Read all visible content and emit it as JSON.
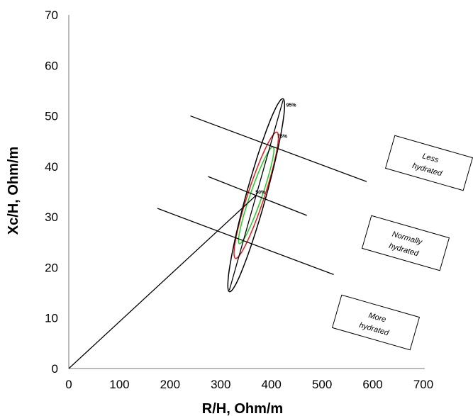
{
  "chart_data": {
    "type": "scatter",
    "title": "",
    "xlabel": "R/H, Ohm/m",
    "ylabel": "Xc/H, Ohm/m",
    "xlim": [
      0,
      700
    ],
    "ylim": [
      0,
      70
    ],
    "x_ticks": [
      0,
      100,
      200,
      300,
      400,
      500,
      600,
      700
    ],
    "y_ticks": [
      0,
      10,
      20,
      30,
      40,
      50,
      60,
      70
    ],
    "grid": false,
    "tolerance_ellipses": [
      {
        "label": "50%",
        "color": "#22cc22",
        "center": [
          370,
          34.3
        ],
        "semi_major": [
          34.5,
          9.4
        ],
        "semi_minor": [
          -5.3,
          1.95
        ]
      },
      {
        "label": "75%",
        "color": "#e31a1c",
        "center": [
          370,
          34.3
        ],
        "semi_major": [
          43.0,
          12.2
        ],
        "semi_minor": [
          -8.2,
          2.7
        ]
      },
      {
        "label": "95%",
        "color": "#000000",
        "center": [
          370,
          34.3
        ],
        "semi_major": [
          55.0,
          18.8
        ],
        "semi_minor": [
          -10.6,
          3.4
        ]
      }
    ],
    "vector_line": [
      [
        0,
        0
      ],
      [
        370,
        34.3
      ]
    ],
    "major_axis_line": [
      [
        423,
        53.1
      ],
      [
        317,
        15.5
      ]
    ],
    "threshold_lines": [
      {
        "from": [
          240,
          50.0
        ],
        "to": [
          588,
          37.0
        ]
      },
      {
        "from": [
          175,
          31.7
        ],
        "to": [
          523,
          18.6
        ]
      }
    ],
    "midline": [
      [
        275,
        38.0
      ],
      [
        470,
        30.3
      ]
    ],
    "zone_labels": [
      {
        "lines": [
          "Less",
          "hydrated"
        ]
      },
      {
        "lines": [
          "Normally",
          "hydrated"
        ]
      },
      {
        "lines": [
          "More",
          "hydrated"
        ]
      }
    ]
  }
}
